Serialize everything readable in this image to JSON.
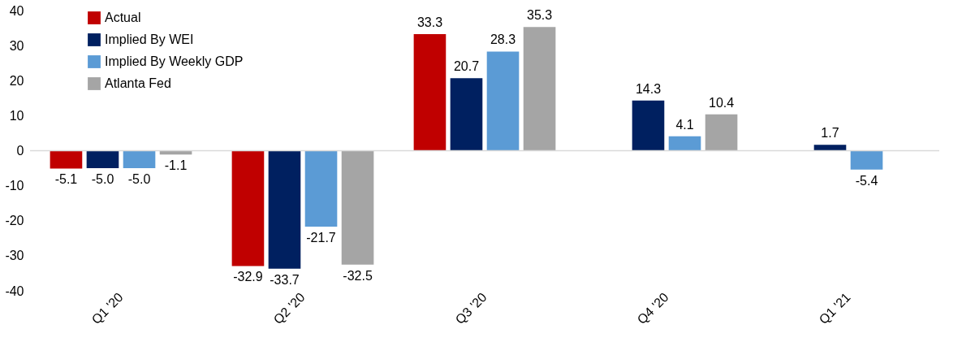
{
  "chart_data": {
    "type": "bar",
    "categories": [
      "Q1 '20",
      "Q2 '20",
      "Q3 '20",
      "Q4 '20",
      "Q1 '21"
    ],
    "series": [
      {
        "name": "Actual",
        "color": "#c00000",
        "values": [
          -5.1,
          -32.9,
          33.3,
          null,
          null
        ],
        "value_labels": [
          "-5.1",
          "-32.9",
          "33.3",
          null,
          null
        ]
      },
      {
        "name": "Implied By WEI",
        "color": "#002060",
        "values": [
          -5.0,
          -33.7,
          20.7,
          14.3,
          1.7
        ],
        "value_labels": [
          "-5.0",
          "-33.7",
          "20.7",
          "14.3",
          "1.7"
        ]
      },
      {
        "name": "Implied By Weekly GDP",
        "color": "#5b9bd5",
        "values": [
          -5.0,
          -21.7,
          28.3,
          4.1,
          -5.4
        ],
        "value_labels": [
          "-5.0",
          "-21.7",
          "28.3",
          "4.1",
          "-5.4"
        ]
      },
      {
        "name": "Atlanta Fed",
        "color": "#a5a5a5",
        "values": [
          -1.1,
          -32.5,
          35.3,
          10.4,
          null
        ],
        "value_labels": [
          "-1.1",
          "-32.5",
          "35.3",
          "10.4",
          null
        ]
      }
    ],
    "ylim": [
      -40,
      40
    ],
    "yticks": [
      -40,
      -30,
      -20,
      -10,
      0,
      10,
      20,
      30,
      40
    ],
    "grid": false,
    "legend": "top left",
    "ref_lines": [
      {
        "axis": "y",
        "value": 0,
        "color": "#d9d9d9"
      }
    ]
  }
}
